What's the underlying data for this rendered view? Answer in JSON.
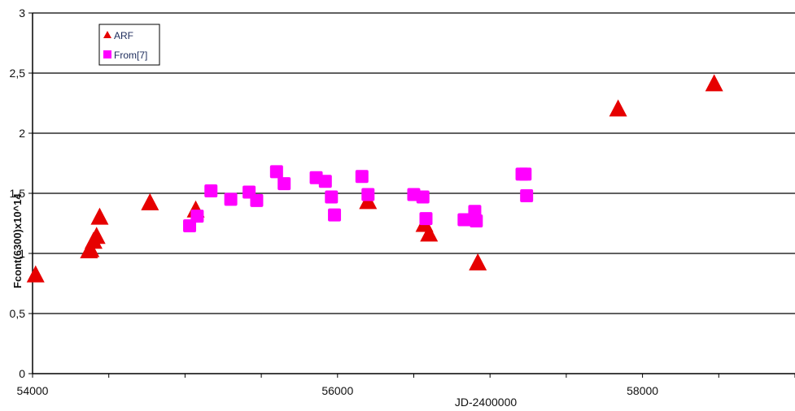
{
  "chart_data": {
    "type": "scatter",
    "xlabel": "JD-2400000",
    "ylabel": "Fcont(6300)x10^14",
    "xlim": [
      54000,
      59000
    ],
    "ylim": [
      0,
      3
    ],
    "x_ticks": [
      "54000",
      "56000",
      "58000"
    ],
    "y_ticks": [
      "0",
      "0,5",
      "1",
      "1,5",
      "2",
      "2,5",
      "3"
    ],
    "grid": "horizontal",
    "legend_position": "top-left",
    "series": [
      {
        "name": "ARF",
        "marker": "triangle",
        "color": "#e60000",
        "points": [
          [
            54020,
            0.82
          ],
          [
            54370,
            1.02
          ],
          [
            54380,
            1.03
          ],
          [
            54400,
            1.1
          ],
          [
            54420,
            1.14
          ],
          [
            54440,
            1.3
          ],
          [
            54770,
            1.42
          ],
          [
            55070,
            1.36
          ],
          [
            56200,
            1.43
          ],
          [
            56570,
            1.24
          ],
          [
            56600,
            1.16
          ],
          [
            56920,
            0.92
          ],
          [
            57840,
            2.2
          ],
          [
            58470,
            2.41
          ]
        ]
      },
      {
        "name": "From[7]",
        "marker": "square",
        "color": "#ff00ff",
        "points": [
          [
            55030,
            1.23
          ],
          [
            55080,
            1.31
          ],
          [
            55170,
            1.52
          ],
          [
            55300,
            1.45
          ],
          [
            55420,
            1.51
          ],
          [
            55470,
            1.44
          ],
          [
            55600,
            1.68
          ],
          [
            55650,
            1.58
          ],
          [
            55860,
            1.63
          ],
          [
            55920,
            1.6
          ],
          [
            55960,
            1.47
          ],
          [
            55980,
            1.32
          ],
          [
            56160,
            1.64
          ],
          [
            56200,
            1.49
          ],
          [
            56500,
            1.49
          ],
          [
            56560,
            1.47
          ],
          [
            56580,
            1.29
          ],
          [
            56830,
            1.28
          ],
          [
            56900,
            1.35
          ],
          [
            56910,
            1.27
          ],
          [
            57210,
            1.66
          ],
          [
            57230,
            1.66
          ],
          [
            57240,
            1.48
          ]
        ]
      }
    ]
  }
}
